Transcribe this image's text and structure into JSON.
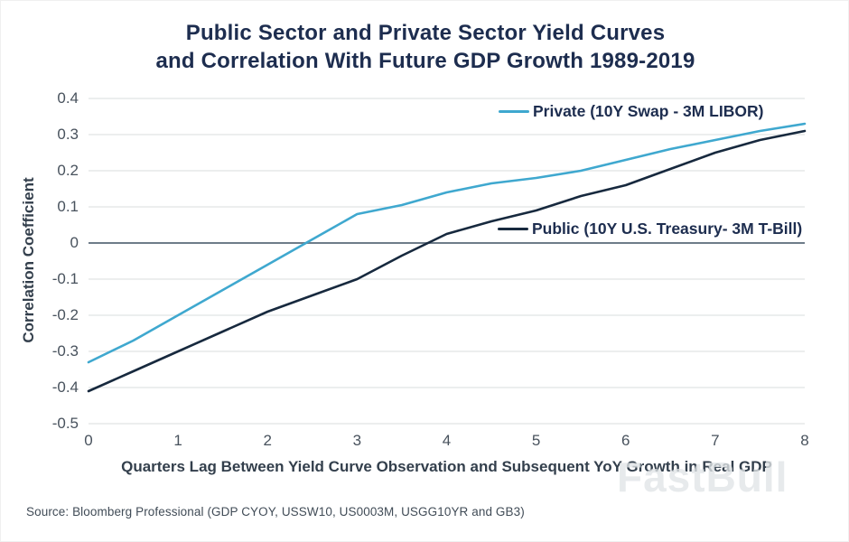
{
  "title": {
    "line1": "Public Sector and Private Sector Yield Curves",
    "line2": "and Correlation With Future GDP Growth 1989-2019"
  },
  "source": "Source: Bloomberg Professional (GDP CYOY, USSW10, US0003M, USGG10YR and GB3)",
  "watermark": "FastBull",
  "colors": {
    "title_text": "#1D2D4F",
    "axis_title_text": "#333F4C",
    "tick_text": "#48525D",
    "gridline": "#E1E3E4",
    "zero_line": "#6E7C89",
    "private_line": "#3FA8CF",
    "public_line": "#17293E",
    "source_text": "#414C57",
    "watermark_text": "#E0E4E7",
    "background": "#FFFFFF"
  },
  "chart_data": {
    "type": "line",
    "title": "Public Sector and Private Sector Yield Curves and Correlation With Future GDP Growth 1989-2019",
    "xlabel": "Quarters Lag Between Yield Curve Observation and Subsequent YoY Growth in Real GDP",
    "ylabel": "Correlation Coefficient",
    "xlim": [
      0,
      8
    ],
    "ylim": [
      -0.5,
      0.4
    ],
    "x_ticks": [
      0,
      1,
      2,
      3,
      4,
      5,
      6,
      7,
      8
    ],
    "y_ticks": [
      0.4,
      0.3,
      0.2,
      0.1,
      0,
      -0.1,
      -0.2,
      -0.3,
      -0.4,
      -0.5
    ],
    "y_tick_labels": [
      "0.4",
      "0.3",
      "0.2",
      "0.1",
      "0",
      "-0.1",
      "-0.2",
      "-0.3",
      "-0.4",
      "-0.5"
    ],
    "grid": true,
    "zero_line": true,
    "legend_position": "inside-right",
    "x": [
      0,
      0.5,
      1,
      1.5,
      2,
      2.5,
      3,
      3.5,
      4,
      4.5,
      5,
      5.5,
      6,
      6.5,
      7,
      7.5,
      8
    ],
    "series": [
      {
        "name": "Private (10Y Swap - 3M LIBOR)",
        "color": "#3FA8CF",
        "values": [
          -0.33,
          -0.27,
          -0.2,
          -0.13,
          -0.06,
          0.01,
          0.08,
          0.105,
          0.14,
          0.165,
          0.18,
          0.2,
          0.23,
          0.26,
          0.285,
          0.31,
          0.33
        ]
      },
      {
        "name": "Public (10Y U.S. Treasury- 3M T-Bill)",
        "color": "#17293E",
        "values": [
          -0.41,
          -0.355,
          -0.3,
          -0.245,
          -0.19,
          -0.145,
          -0.1,
          -0.035,
          0.025,
          0.06,
          0.09,
          0.13,
          0.16,
          0.205,
          0.25,
          0.285,
          0.31
        ]
      }
    ]
  }
}
